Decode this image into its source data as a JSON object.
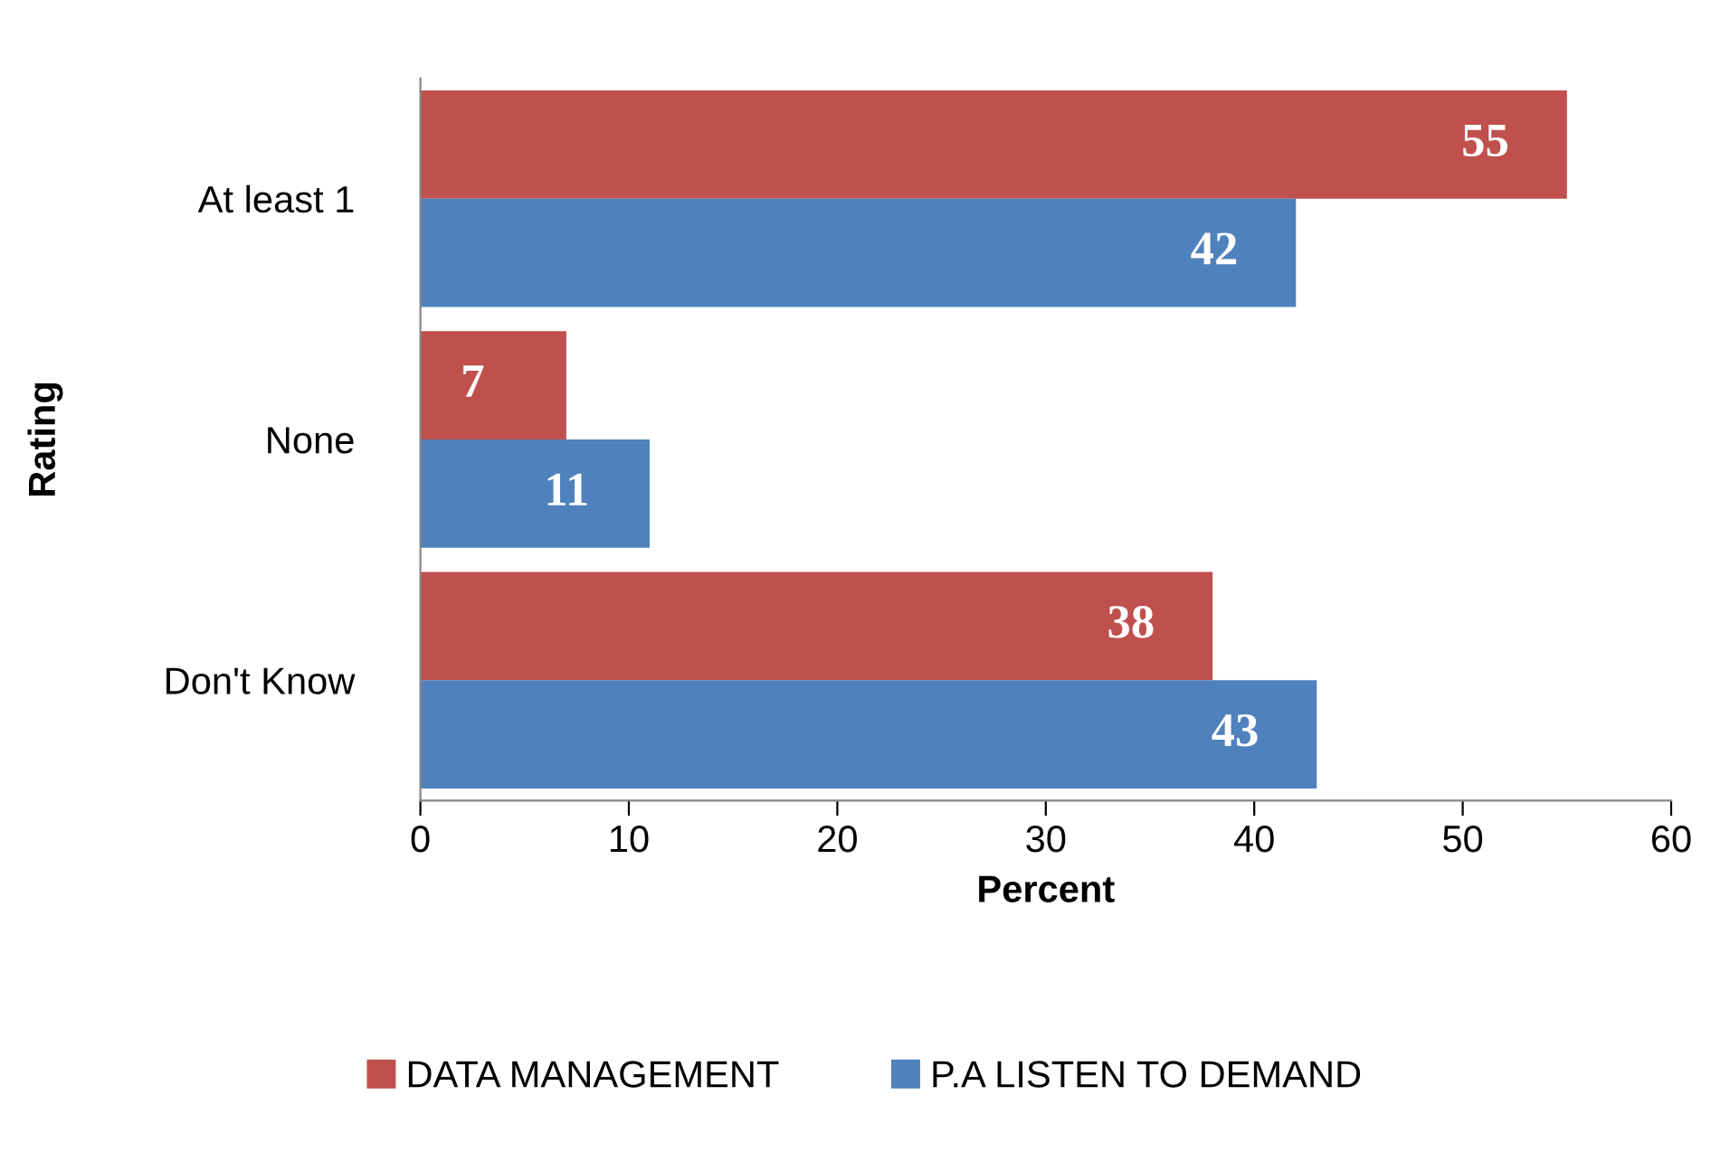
{
  "chart_data": {
    "type": "bar",
    "orientation": "horizontal",
    "xlabel": "Percent",
    "ylabel": "Rating",
    "categories": [
      "At least 1",
      "None",
      "Don't Know"
    ],
    "series": [
      {
        "name": "DATA MANAGEMENT",
        "color": "#c0504d",
        "values": [
          55,
          7,
          38
        ]
      },
      {
        "name": "P.A LISTEN TO DEMAND",
        "color": "#4f81bd",
        "values": [
          42,
          11,
          43
        ]
      }
    ],
    "xlim": [
      0,
      60
    ],
    "xticks": [
      0,
      10,
      20,
      30,
      40,
      50,
      60
    ],
    "data_labels": true,
    "grid": false,
    "legend": "bottom"
  }
}
